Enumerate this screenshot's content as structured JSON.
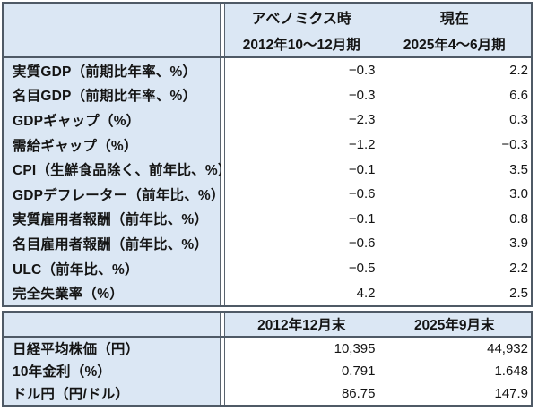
{
  "colors": {
    "header_bg": "#dbe7f4",
    "label_bg": "#dbe7f4",
    "value_bg": "#ffffff",
    "outer_border": "#4f5a66",
    "inner_border": "#59636e",
    "text": "#141414"
  },
  "chart_data": [
    {
      "type": "table",
      "header": {
        "col1_title": "アベノミクス時",
        "col2_title": "現在",
        "col1_period": "2012年10～12月期",
        "col2_period": "2025年4～6月期"
      },
      "rows": [
        {
          "label": "実質GDP（前期比年率、%）",
          "v1": "−0.3",
          "v2": "2.2"
        },
        {
          "label": "名目GDP（前期比年率、%）",
          "v1": "−0.3",
          "v2": "6.6"
        },
        {
          "label": "GDPギャップ（%）",
          "v1": "−2.3",
          "v2": "0.3"
        },
        {
          "label": "需給ギャップ（%）",
          "v1": "−1.2",
          "v2": "−0.3"
        },
        {
          "label": "CPI（生鮮食品除く、前年比、%）",
          "v1": "−0.1",
          "v2": "3.5"
        },
        {
          "label": "GDPデフレーター（前年比、%）",
          "v1": "−0.6",
          "v2": "3.0"
        },
        {
          "label": "実質雇用者報酬（前年比、%）",
          "v1": "−0.1",
          "v2": "0.8"
        },
        {
          "label": "名目雇用者報酬（前年比、%）",
          "v1": "−0.6",
          "v2": "3.9"
        },
        {
          "label": "ULC（前年比、%）",
          "v1": "−0.5",
          "v2": "2.2"
        },
        {
          "label": "完全失業率（%）",
          "v1": "4.2",
          "v2": "2.5"
        }
      ]
    },
    {
      "type": "table",
      "header": {
        "col1_period": "2012年12月末",
        "col2_period": "2025年9月末"
      },
      "rows": [
        {
          "label": "日経平均株価（円）",
          "v1": "10,395",
          "v2": "44,932"
        },
        {
          "label": "10年金利（%）",
          "v1": "0.791",
          "v2": "1.648"
        },
        {
          "label": "ドル円（円/ドル）",
          "v1": "86.75",
          "v2": "147.9"
        }
      ]
    }
  ]
}
